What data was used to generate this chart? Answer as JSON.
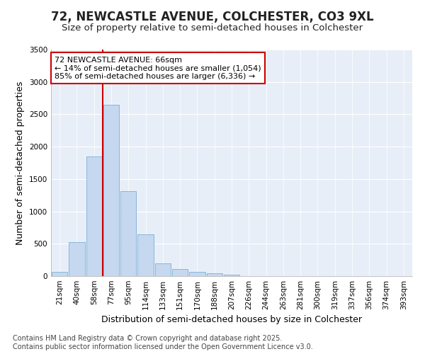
{
  "title": "72, NEWCASTLE AVENUE, COLCHESTER, CO3 9XL",
  "subtitle": "Size of property relative to semi-detached houses in Colchester",
  "xlabel": "Distribution of semi-detached houses by size in Colchester",
  "ylabel": "Number of semi-detached properties",
  "categories": [
    "21sqm",
    "40sqm",
    "58sqm",
    "77sqm",
    "95sqm",
    "114sqm",
    "133sqm",
    "151sqm",
    "170sqm",
    "188sqm",
    "207sqm",
    "226sqm",
    "244sqm",
    "263sqm",
    "281sqm",
    "300sqm",
    "319sqm",
    "337sqm",
    "356sqm",
    "374sqm",
    "393sqm"
  ],
  "values": [
    70,
    530,
    1850,
    2650,
    1310,
    640,
    200,
    110,
    65,
    40,
    25,
    0,
    0,
    0,
    0,
    0,
    0,
    0,
    0,
    0,
    0
  ],
  "bar_color": "#c5d8f0",
  "bar_edge_color": "#7bafd4",
  "vline_x_idx": 2,
  "vline_color": "#cc0000",
  "annotation_text": "72 NEWCASTLE AVENUE: 66sqm\n← 14% of semi-detached houses are smaller (1,054)\n85% of semi-detached houses are larger (6,336) →",
  "annotation_box_facecolor": "#ffffff",
  "annotation_box_edgecolor": "#cc0000",
  "ylim": [
    0,
    3500
  ],
  "yticks": [
    0,
    500,
    1000,
    1500,
    2000,
    2500,
    3000,
    3500
  ],
  "background_color": "#ffffff",
  "plot_bg_color": "#e8eef8",
  "footer": "Contains HM Land Registry data © Crown copyright and database right 2025.\nContains public sector information licensed under the Open Government Licence v3.0.",
  "title_fontsize": 12,
  "subtitle_fontsize": 9.5,
  "axis_label_fontsize": 9,
  "tick_fontsize": 7.5,
  "footer_fontsize": 7
}
